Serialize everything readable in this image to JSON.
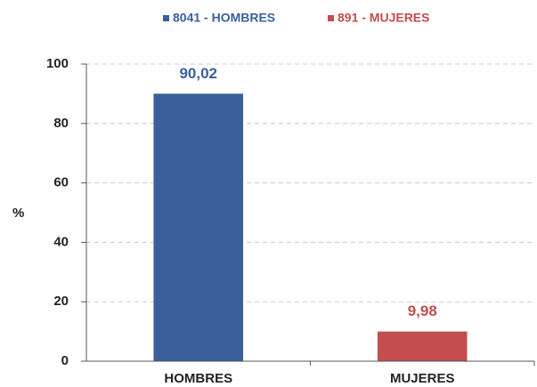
{
  "chart_data": {
    "type": "bar",
    "legend": [
      "8041 - HOMBRES",
      "891 - MUJERES"
    ],
    "categories": [
      "HOMBRES",
      "MUJERES"
    ],
    "values": [
      90.02,
      9.98
    ],
    "value_labels": [
      "90,02",
      "9,98"
    ],
    "colors": [
      "#3a5f9b",
      "#c34d4f"
    ],
    "ylabel": "%",
    "ylim": [
      0,
      100
    ],
    "yticks": [
      0,
      20,
      40,
      60,
      80,
      100
    ],
    "grid": true
  }
}
